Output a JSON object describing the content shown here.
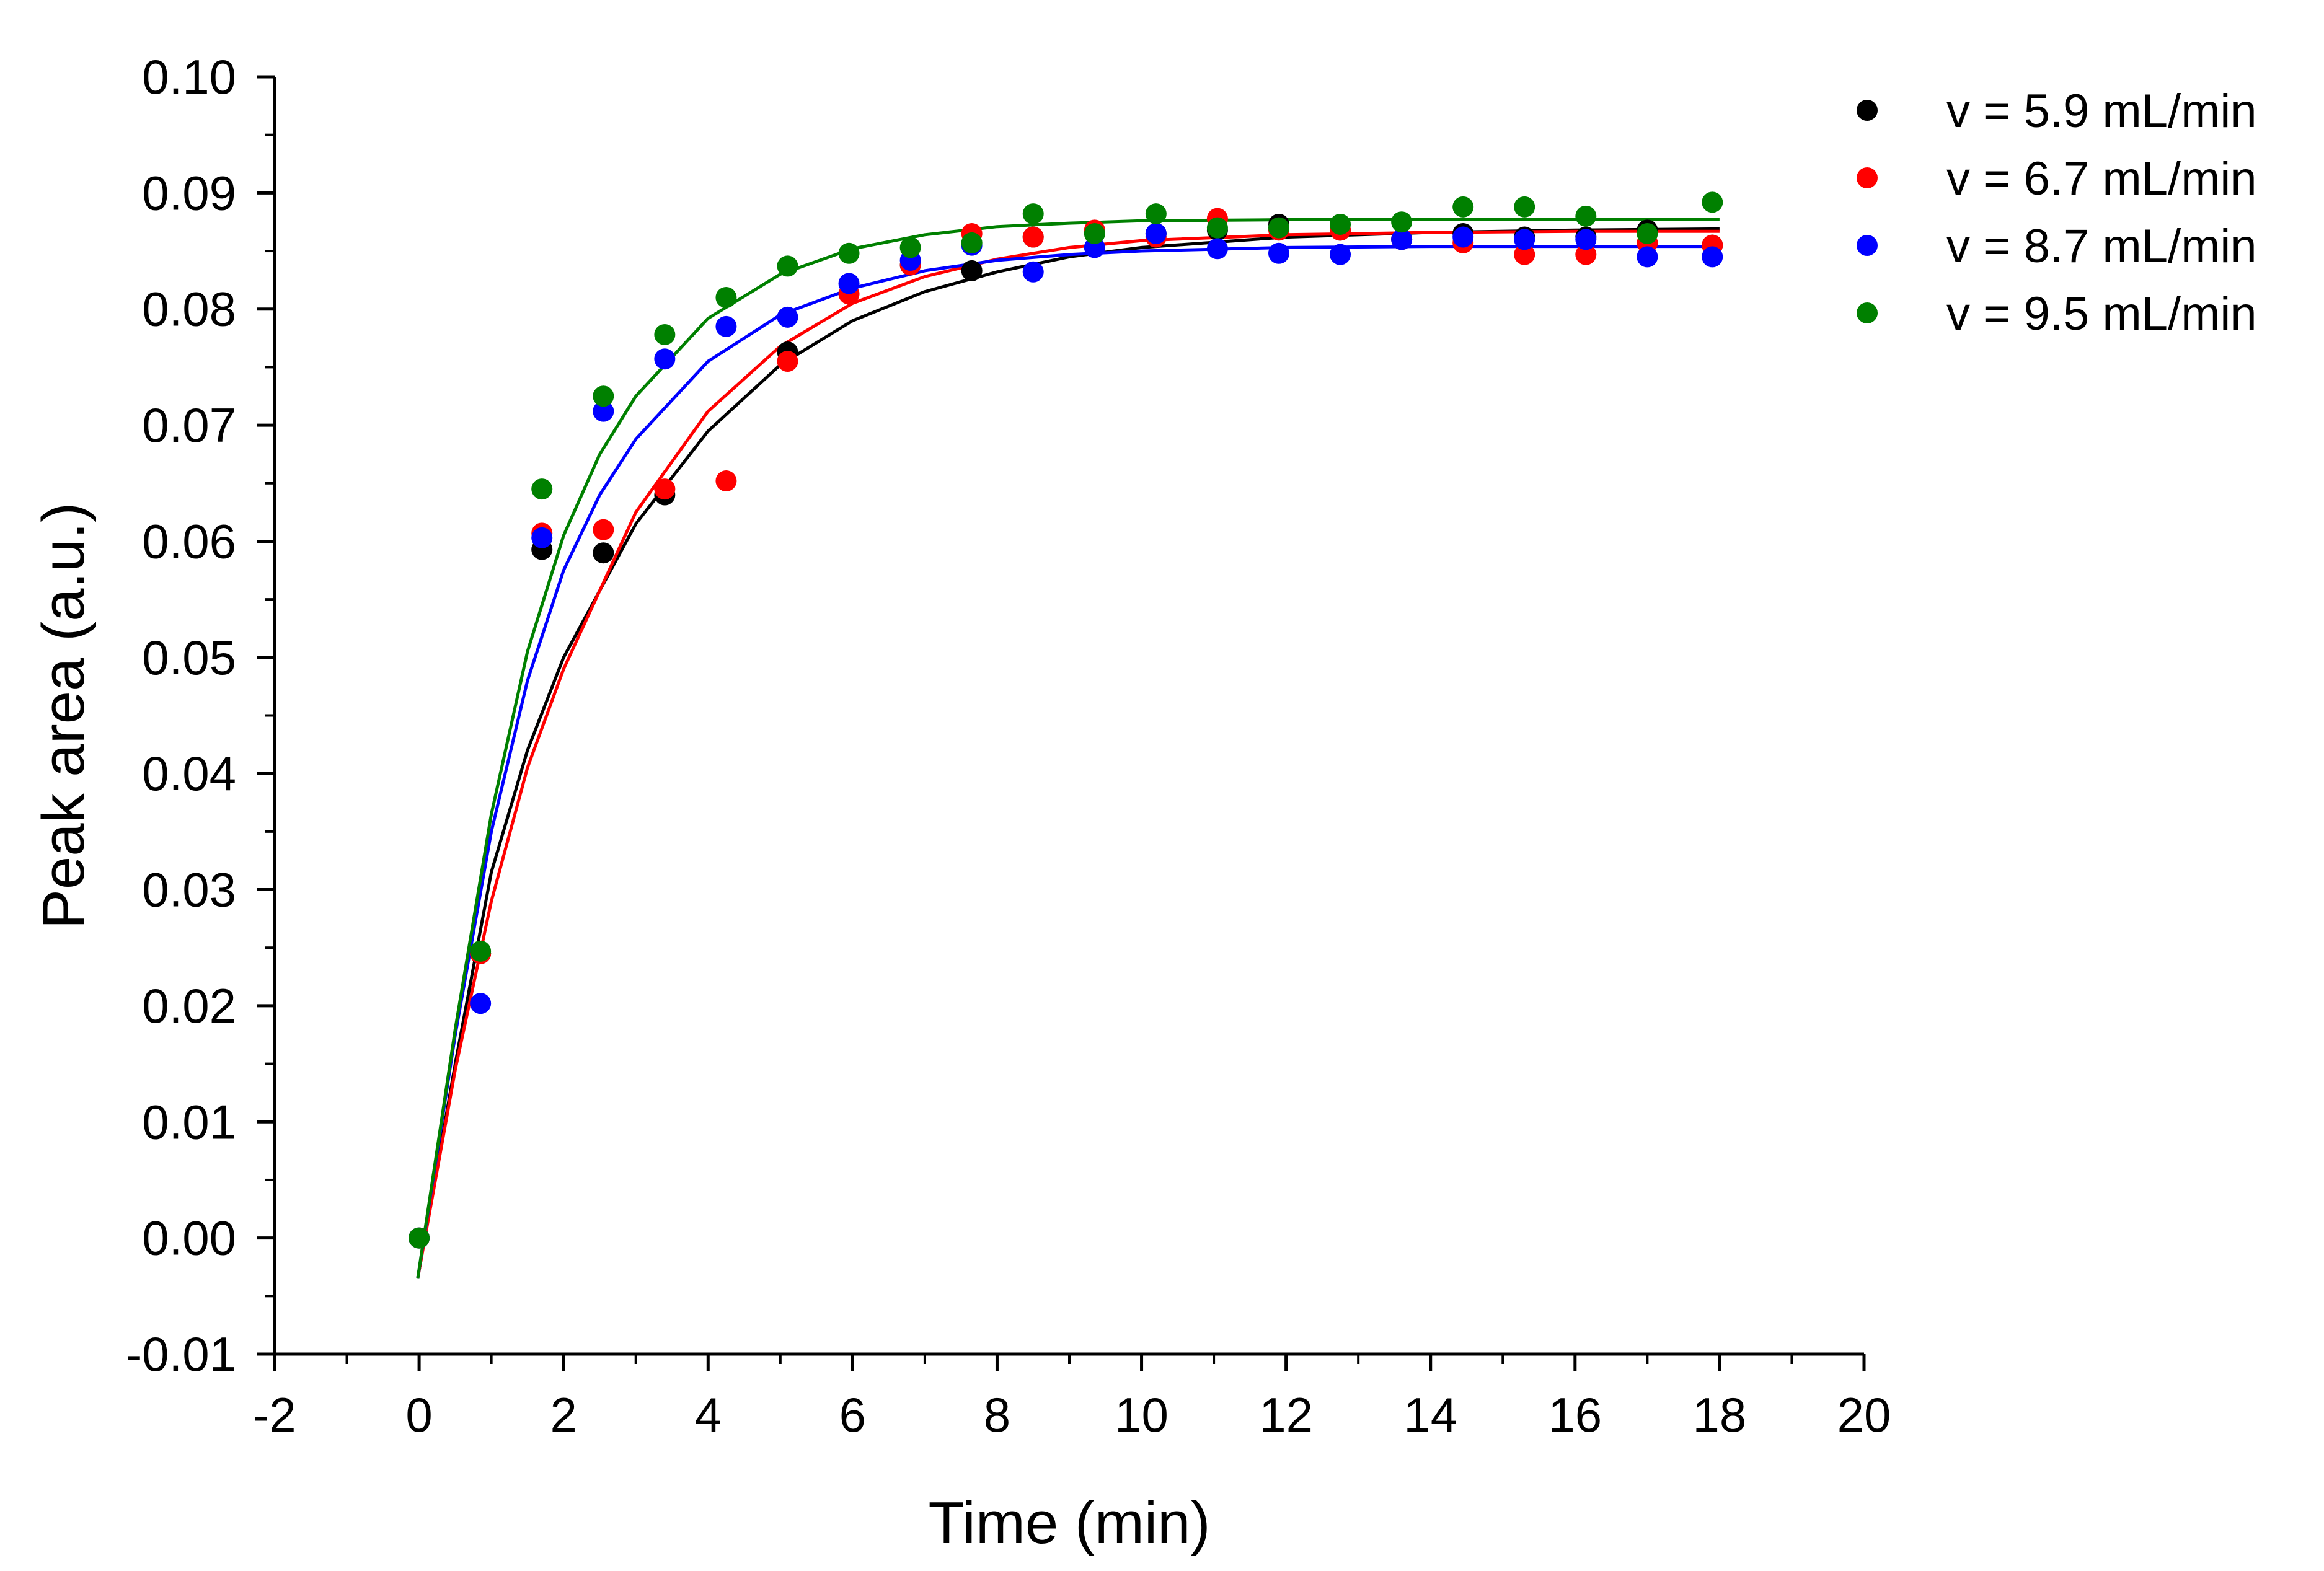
{
  "chart_data": {
    "type": "scatter",
    "title": "",
    "xlabel": "Time (min)",
    "ylabel": "Peak area (a.u.)",
    "xlim": [
      -2,
      20
    ],
    "ylim": [
      -0.01,
      0.1
    ],
    "x_ticks": [
      "-2",
      "0",
      "2",
      "4",
      "6",
      "8",
      "10",
      "12",
      "14",
      "16",
      "18",
      "20"
    ],
    "y_ticks": [
      "-0.01",
      "0.00",
      "0.01",
      "0.02",
      "0.03",
      "0.04",
      "0.05",
      "0.06",
      "0.07",
      "0.08",
      "0.09",
      "0.10"
    ],
    "legend_position": "top-right, outside plot",
    "grid": false,
    "series": [
      {
        "name": "v = 5.9 mL/min",
        "color": "#000000",
        "x": [
          0,
          0.85,
          1.7,
          2.55,
          3.4,
          5.1,
          6.8,
          7.65,
          8.5,
          9.35,
          10.2,
          11.05,
          11.9,
          12.75,
          13.6,
          14.45,
          15.3,
          16.15,
          17.0,
          17.9
        ],
        "y": [
          0.0,
          0.0245,
          0.0593,
          0.059,
          0.064,
          0.0763,
          0.0838,
          0.0833,
          0.0862,
          0.0866,
          0.0865,
          0.0868,
          0.0873,
          0.0868,
          0.086,
          0.0865,
          0.0862,
          0.0862,
          0.0868,
          0.0855
        ],
        "fit": {
          "x": [
            -0.02,
            0.5,
            1.0,
            1.5,
            2.0,
            3.0,
            4.0,
            5.0,
            6.0,
            7.0,
            8.0,
            9.0,
            10.0,
            12.0,
            14.0,
            16.0,
            18.0
          ],
          "y": [
            -0.0035,
            0.015,
            0.0315,
            0.042,
            0.05,
            0.0615,
            0.0695,
            0.0752,
            0.079,
            0.0815,
            0.0832,
            0.0845,
            0.0853,
            0.0862,
            0.0866,
            0.0868,
            0.0869
          ]
        }
      },
      {
        "name": "v = 6.7 mL/min",
        "color": "#ff0000",
        "x": [
          0,
          0.85,
          1.7,
          2.55,
          3.4,
          4.25,
          5.1,
          5.95,
          6.8,
          7.65,
          8.5,
          9.35,
          10.2,
          11.05,
          11.9,
          12.75,
          13.6,
          14.45,
          15.3,
          16.15,
          17.0,
          17.9
        ],
        "y": [
          0.0,
          0.0245,
          0.0607,
          0.061,
          0.0645,
          0.0652,
          0.0755,
          0.0813,
          0.0838,
          0.0865,
          0.0862,
          0.0868,
          0.0862,
          0.0878,
          0.0868,
          0.0868,
          0.086,
          0.0857,
          0.0847,
          0.0847,
          0.0857,
          0.0855
        ],
        "fit": {
          "x": [
            -0.02,
            0.5,
            1.0,
            1.5,
            2.0,
            3.0,
            4.0,
            5.0,
            6.0,
            7.0,
            8.0,
            9.0,
            10.0,
            12.0,
            14.0,
            16.0,
            18.0
          ],
          "y": [
            -0.0035,
            0.0145,
            0.029,
            0.0405,
            0.049,
            0.0625,
            0.0712,
            0.0768,
            0.0805,
            0.0828,
            0.0843,
            0.0853,
            0.0859,
            0.0864,
            0.0866,
            0.0867,
            0.0867
          ]
        }
      },
      {
        "name": "v = 8.7 mL/min",
        "color": "#0000ff",
        "x": [
          0,
          0.85,
          1.7,
          2.55,
          3.4,
          4.25,
          5.1,
          5.95,
          6.8,
          7.65,
          8.5,
          9.35,
          10.2,
          11.05,
          11.9,
          12.75,
          13.6,
          14.45,
          15.3,
          16.15,
          17.0,
          17.9
        ],
        "y": [
          0.0,
          0.0202,
          0.0603,
          0.0712,
          0.0757,
          0.0785,
          0.0793,
          0.0822,
          0.0842,
          0.0855,
          0.0832,
          0.0853,
          0.0865,
          0.0852,
          0.0848,
          0.0847,
          0.086,
          0.0862,
          0.086,
          0.086,
          0.0845,
          0.0845
        ],
        "fit": {
          "x": [
            -0.02,
            0.5,
            1.0,
            1.5,
            2.0,
            2.5,
            3.0,
            4.0,
            5.0,
            6.0,
            7.0,
            8.0,
            9.0,
            10.0,
            12.0,
            14.0,
            16.0,
            18.0
          ],
          "y": [
            -0.0035,
            0.0175,
            0.035,
            0.048,
            0.0575,
            0.064,
            0.0688,
            0.0755,
            0.0795,
            0.0818,
            0.0833,
            0.0842,
            0.0847,
            0.085,
            0.0853,
            0.0854,
            0.0854,
            0.0854
          ]
        }
      },
      {
        "name": "v = 9.5 mL/min",
        "color": "#008000",
        "x": [
          0,
          0.85,
          1.7,
          2.55,
          3.4,
          4.25,
          5.1,
          5.95,
          6.8,
          7.65,
          8.5,
          9.35,
          10.2,
          11.05,
          11.9,
          12.75,
          13.6,
          14.45,
          15.3,
          16.15,
          17.0,
          17.9
        ],
        "y": [
          0.0,
          0.0247,
          0.0645,
          0.0725,
          0.0778,
          0.081,
          0.0837,
          0.0848,
          0.0853,
          0.0857,
          0.0882,
          0.0865,
          0.0882,
          0.087,
          0.087,
          0.0873,
          0.0875,
          0.0888,
          0.0888,
          0.088,
          0.0865,
          0.0892
        ],
        "fit": {
          "x": [
            -0.02,
            0.5,
            1.0,
            1.5,
            2.0,
            2.5,
            3.0,
            4.0,
            5.0,
            6.0,
            7.0,
            8.0,
            9.0,
            10.0,
            12.0,
            14.0,
            16.0,
            18.0
          ],
          "y": [
            -0.0035,
            0.018,
            0.0365,
            0.0505,
            0.0605,
            0.0675,
            0.0725,
            0.0792,
            0.083,
            0.0852,
            0.0864,
            0.0871,
            0.0874,
            0.0876,
            0.0877,
            0.0877,
            0.0877,
            0.0877
          ]
        }
      }
    ]
  }
}
